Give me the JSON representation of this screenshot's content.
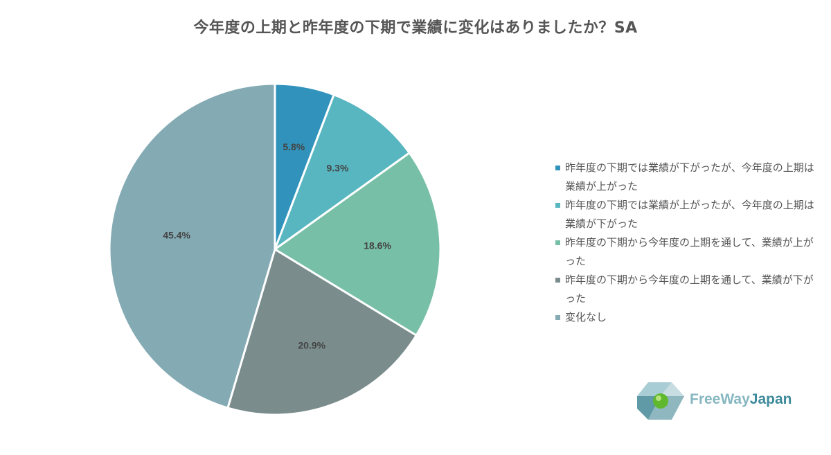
{
  "title": "今年度の上期と昨年度の下期で業績に変化はありましたか？SA",
  "chart_data": {
    "type": "pie",
    "title": "今年度の上期と昨年度の下期で業績に変化はありましたか？SA",
    "slices": [
      {
        "label": "昨年度の下期では業績が下がったが、今年度の上期は業績が上がった",
        "value": 5.8,
        "display": "5.8%",
        "color": "#3193bb"
      },
      {
        "label": "昨年度の下期では業績が上がったが、今年度の上期は業績が下がった",
        "value": 9.3,
        "display": "9.3%",
        "color": "#58b6c0"
      },
      {
        "label": "昨年度の下期から今年度の上期を通して、業績が上がった",
        "value": 18.6,
        "display": "18.6%",
        "color": "#78bfa8"
      },
      {
        "label": "昨年度の下期から今年度の上期を通して、業績が下がった",
        "value": 20.9,
        "display": "20.9%",
        "color": "#7a8c8c"
      },
      {
        "label": "変化なし",
        "value": 45.4,
        "display": "45.4%",
        "color": "#84abb4"
      }
    ],
    "legend_position": "right"
  },
  "logo": {
    "text_part1": "FreeWay",
    "text_part2": "Japan",
    "color1": "#86b6c0",
    "color2": "#3d8a9a"
  }
}
